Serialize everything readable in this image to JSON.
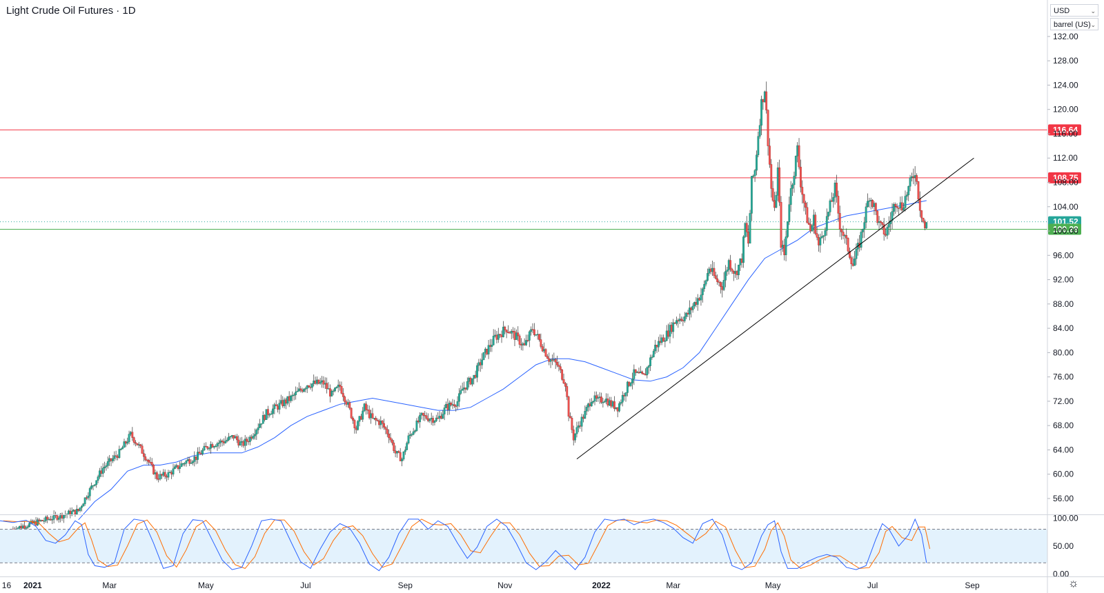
{
  "header": {
    "title": "Light Crude Oil Futures · 1D"
  },
  "controls": {
    "currency": "USD",
    "unit": "barrel (US)"
  },
  "colors": {
    "up": "#26a69a",
    "down": "#ef5350",
    "candle_wick": "#4a4a4a",
    "resistance": "#f23645",
    "support": "#4caf50",
    "ma": "#2962ff",
    "trendline": "#000000",
    "stoch_k": "#2962ff",
    "stoch_d": "#ff6d00",
    "stoch_band": "#e3f2fd"
  },
  "chart_data": {
    "type": "candlestick",
    "title": "Light Crude Oil Futures · 1D",
    "price_axis": {
      "range": [
        53.5,
        138
      ],
      "ticks": [
        "132.00",
        "128.00",
        "124.00",
        "120.00",
        "116.00",
        "112.00",
        "108.00",
        "104.00",
        "100.00",
        "96.00",
        "92.00",
        "88.00",
        "84.00",
        "80.00",
        "76.00",
        "72.00",
        "68.00",
        "64.00",
        "60.00",
        "56.00"
      ],
      "tick_values": [
        132,
        128,
        124,
        120,
        116,
        112,
        108,
        104,
        100,
        96,
        92,
        88,
        84,
        80,
        76,
        72,
        68,
        64,
        60,
        56
      ]
    },
    "time_axis": {
      "labels": [
        "16",
        "2021",
        "Mar",
        "May",
        "Jul",
        "Sep",
        "Nov",
        "2022",
        "Mar",
        "May",
        "Jul",
        "Sep"
      ],
      "label_day_index": [
        -4,
        12,
        59,
        118,
        179,
        240,
        301,
        360,
        404,
        465,
        526,
        587
      ],
      "day_range": [
        -8,
        633
      ]
    },
    "horizontal_levels": [
      {
        "value": 116.64,
        "label": "116.64",
        "kind": "resistance"
      },
      {
        "value": 108.75,
        "label": "108.75",
        "kind": "resistance"
      },
      {
        "value": 101.52,
        "label": "101.52",
        "kind": "current-dotted"
      },
      {
        "value": 100.28,
        "label": "100.28",
        "kind": "support"
      }
    ],
    "price_path": [
      [
        0,
        51.0
      ],
      [
        40,
        54.0
      ],
      [
        45,
        56.5
      ],
      [
        55,
        61.0
      ],
      [
        65,
        63.5
      ],
      [
        72,
        66.5
      ],
      [
        76,
        65.0
      ],
      [
        82,
        62.5
      ],
      [
        88,
        59.5
      ],
      [
        95,
        60.0
      ],
      [
        105,
        62.0
      ],
      [
        112,
        62.8
      ],
      [
        120,
        64.8
      ],
      [
        130,
        65.5
      ],
      [
        135,
        66.2
      ],
      [
        140,
        64.8
      ],
      [
        145,
        66.0
      ],
      [
        155,
        70.0
      ],
      [
        170,
        72.5
      ],
      [
        180,
        74.8
      ],
      [
        190,
        75.0
      ],
      [
        195,
        73.0
      ],
      [
        200,
        74.5
      ],
      [
        204,
        72.0
      ],
      [
        210,
        67.5
      ],
      [
        215,
        71.0
      ],
      [
        220,
        69.0
      ],
      [
        225,
        68.5
      ],
      [
        230,
        66.5
      ],
      [
        234,
        63.5
      ],
      [
        238,
        62.5
      ],
      [
        242,
        66.0
      ],
      [
        250,
        69.5
      ],
      [
        260,
        69.0
      ],
      [
        265,
        71.0
      ],
      [
        272,
        72.0
      ],
      [
        275,
        74.0
      ],
      [
        282,
        76.0
      ],
      [
        288,
        79.5
      ],
      [
        295,
        82.5
      ],
      [
        302,
        84.0
      ],
      [
        308,
        82.5
      ],
      [
        313,
        81.0
      ],
      [
        318,
        84.0
      ],
      [
        324,
        81.0
      ],
      [
        328,
        79.0
      ],
      [
        333,
        78.0
      ],
      [
        338,
        75.0
      ],
      [
        340,
        70.0
      ],
      [
        343,
        66.0
      ],
      [
        346,
        68.0
      ],
      [
        350,
        70.0
      ],
      [
        354,
        72.5
      ],
      [
        358,
        72.0
      ],
      [
        362,
        72.5
      ],
      [
        366,
        71.5
      ],
      [
        370,
        71.0
      ],
      [
        375,
        74.0
      ],
      [
        380,
        76.5
      ],
      [
        386,
        76.0
      ],
      [
        393,
        81.0
      ],
      [
        400,
        83.0
      ],
      [
        406,
        85.5
      ],
      [
        412,
        86.0
      ],
      [
        418,
        88.5
      ],
      [
        422,
        90.0
      ],
      [
        426,
        94.0
      ],
      [
        430,
        92.0
      ],
      [
        434,
        91.0
      ],
      [
        438,
        95.0
      ],
      [
        442,
        93.0
      ],
      [
        446,
        95.5
      ],
      [
        448,
        101.0
      ],
      [
        450,
        98.0
      ],
      [
        452,
        108.0
      ],
      [
        454,
        110.0
      ],
      [
        456,
        116.0
      ],
      [
        458,
        121.0
      ],
      [
        460,
        123.5
      ],
      [
        462,
        115.0
      ],
      [
        464,
        107.0
      ],
      [
        466,
        103.0
      ],
      [
        468,
        110.0
      ],
      [
        470,
        98.0
      ],
      [
        472,
        96.0
      ],
      [
        475,
        105.0
      ],
      [
        478,
        110.0
      ],
      [
        480,
        113.5
      ],
      [
        482,
        108.0
      ],
      [
        485,
        103.0
      ],
      [
        488,
        100.0
      ],
      [
        490,
        102.0
      ],
      [
        493,
        97.5
      ],
      [
        496,
        100.0
      ],
      [
        500,
        104.0
      ],
      [
        503,
        107.0
      ],
      [
        506,
        101.0
      ],
      [
        510,
        98.0
      ],
      [
        514,
        94.5
      ],
      [
        518,
        98.0
      ],
      [
        521,
        102.0
      ],
      [
        524,
        106.0
      ],
      [
        527,
        104.0
      ],
      [
        530,
        101.0
      ],
      [
        534,
        99.5
      ],
      [
        537,
        102.0
      ],
      [
        540,
        105.0
      ],
      [
        544,
        104.0
      ],
      [
        548,
        107.0
      ],
      [
        552,
        110.0
      ],
      [
        555,
        104.0
      ],
      [
        558,
        100.5
      ],
      [
        559,
        101.0
      ]
    ],
    "moving_average": [
      [
        40,
        52.5
      ],
      [
        50,
        55.5
      ],
      [
        60,
        57.5
      ],
      [
        70,
        60.5
      ],
      [
        80,
        61.5
      ],
      [
        90,
        61.5
      ],
      [
        100,
        62.0
      ],
      [
        110,
        63.0
      ],
      [
        120,
        63.5
      ],
      [
        130,
        63.5
      ],
      [
        140,
        63.5
      ],
      [
        150,
        64.5
      ],
      [
        160,
        66.0
      ],
      [
        170,
        68.0
      ],
      [
        180,
        69.5
      ],
      [
        190,
        70.5
      ],
      [
        200,
        71.5
      ],
      [
        210,
        72.0
      ],
      [
        220,
        72.5
      ],
      [
        230,
        72.0
      ],
      [
        240,
        71.5
      ],
      [
        250,
        71.0
      ],
      [
        260,
        70.5
      ],
      [
        270,
        70.5
      ],
      [
        280,
        71.0
      ],
      [
        290,
        72.5
      ],
      [
        300,
        74.0
      ],
      [
        310,
        76.0
      ],
      [
        320,
        78.0
      ],
      [
        330,
        79.0
      ],
      [
        340,
        79.0
      ],
      [
        350,
        78.5
      ],
      [
        360,
        77.5
      ],
      [
        370,
        76.5
      ],
      [
        380,
        75.5
      ],
      [
        390,
        75.3
      ],
      [
        400,
        76.0
      ],
      [
        410,
        77.5
      ],
      [
        420,
        80.0
      ],
      [
        430,
        84.0
      ],
      [
        440,
        88.0
      ],
      [
        450,
        92.0
      ],
      [
        460,
        95.5
      ],
      [
        470,
        97.0
      ],
      [
        480,
        98.5
      ],
      [
        490,
        100.5
      ],
      [
        500,
        101.5
      ],
      [
        510,
        102.5
      ],
      [
        520,
        103.0
      ],
      [
        530,
        103.5
      ],
      [
        540,
        104.0
      ],
      [
        550,
        104.5
      ],
      [
        559,
        105.0
      ]
    ],
    "trendline": {
      "start": [
        345,
        62.5
      ],
      "end": [
        588,
        112.0
      ]
    },
    "stochastic": {
      "range": [
        -3,
        104
      ],
      "ticks": [
        "100.00",
        "50.00",
        "0.00"
      ],
      "tick_values": [
        100,
        50,
        0
      ],
      "bands": [
        20,
        80
      ],
      "k_path": [
        [
          -8,
          95
        ],
        [
          0,
          92
        ],
        [
          8,
          96
        ],
        [
          14,
          85
        ],
        [
          20,
          60
        ],
        [
          26,
          55
        ],
        [
          32,
          70
        ],
        [
          38,
          95
        ],
        [
          42,
          88
        ],
        [
          46,
          35
        ],
        [
          50,
          15
        ],
        [
          56,
          12
        ],
        [
          62,
          20
        ],
        [
          68,
          80
        ],
        [
          74,
          98
        ],
        [
          80,
          95
        ],
        [
          86,
          55
        ],
        [
          92,
          10
        ],
        [
          98,
          15
        ],
        [
          104,
          72
        ],
        [
          110,
          97
        ],
        [
          116,
          95
        ],
        [
          122,
          60
        ],
        [
          128,
          25
        ],
        [
          134,
          8
        ],
        [
          140,
          12
        ],
        [
          146,
          50
        ],
        [
          152,
          95
        ],
        [
          158,
          98
        ],
        [
          164,
          95
        ],
        [
          170,
          58
        ],
        [
          176,
          22
        ],
        [
          182,
          10
        ],
        [
          188,
          45
        ],
        [
          194,
          75
        ],
        [
          200,
          90
        ],
        [
          206,
          82
        ],
        [
          212,
          55
        ],
        [
          218,
          18
        ],
        [
          224,
          6
        ],
        [
          230,
          30
        ],
        [
          236,
          72
        ],
        [
          242,
          98
        ],
        [
          248,
          98
        ],
        [
          254,
          80
        ],
        [
          260,
          95
        ],
        [
          266,
          85
        ],
        [
          272,
          55
        ],
        [
          278,
          28
        ],
        [
          284,
          48
        ],
        [
          290,
          85
        ],
        [
          296,
          98
        ],
        [
          302,
          85
        ],
        [
          308,
          55
        ],
        [
          314,
          20
        ],
        [
          320,
          8
        ],
        [
          326,
          22
        ],
        [
          332,
          42
        ],
        [
          338,
          25
        ],
        [
          344,
          8
        ],
        [
          350,
          30
        ],
        [
          356,
          75
        ],
        [
          362,
          98
        ],
        [
          368,
          95
        ],
        [
          374,
          98
        ],
        [
          380,
          88
        ],
        [
          386,
          95
        ],
        [
          392,
          98
        ],
        [
          398,
          92
        ],
        [
          404,
          82
        ],
        [
          410,
          65
        ],
        [
          416,
          55
        ],
        [
          422,
          90
        ],
        [
          428,
          98
        ],
        [
          434,
          70
        ],
        [
          440,
          15
        ],
        [
          446,
          8
        ],
        [
          452,
          20
        ],
        [
          458,
          68
        ],
        [
          462,
          88
        ],
        [
          466,
          95
        ],
        [
          470,
          40
        ],
        [
          474,
          10
        ],
        [
          480,
          10
        ],
        [
          486,
          22
        ],
        [
          492,
          30
        ],
        [
          498,
          35
        ],
        [
          504,
          30
        ],
        [
          510,
          12
        ],
        [
          516,
          8
        ],
        [
          522,
          15
        ],
        [
          528,
          62
        ],
        [
          532,
          90
        ],
        [
          536,
          80
        ],
        [
          542,
          50
        ],
        [
          548,
          70
        ],
        [
          552,
          98
        ],
        [
          556,
          70
        ],
        [
          559,
          20
        ]
      ]
    }
  }
}
